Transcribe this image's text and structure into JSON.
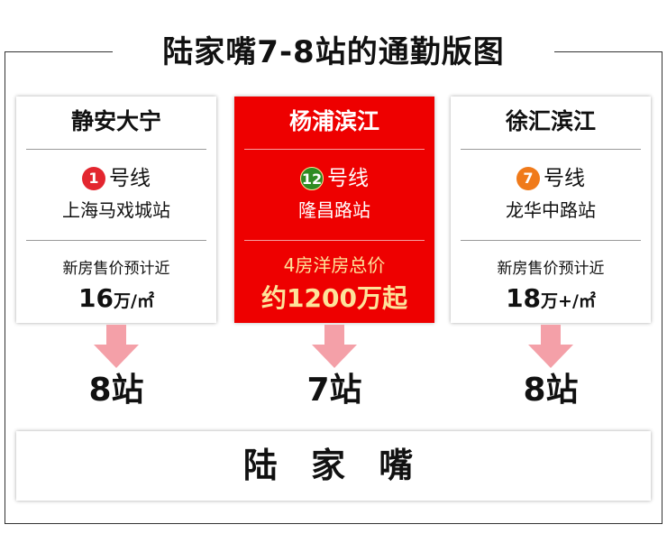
{
  "title": "陆家嘴7-8站的通勤版图",
  "destination": "陆 家 嘴",
  "cards": [
    {
      "area": "静安大宁",
      "line_number": "1",
      "line_suffix": "号线",
      "line_color": "#e3262f",
      "station": "上海马戏城站",
      "label": "新房售价预计近",
      "value_num": "16",
      "value_unit": "万/㎡",
      "stops": "8站"
    },
    {
      "area": "杨浦滨江",
      "line_number": "12",
      "line_suffix": "号线",
      "line_color": "#2e8b22",
      "station": "隆昌路站",
      "label": "4房洋房总价",
      "value_num": "约1200万起",
      "value_unit": "",
      "stops": "7站",
      "highlight": true,
      "highlight_color": "#ee0000"
    },
    {
      "area": "徐汇滨江",
      "line_number": "7",
      "line_suffix": "号线",
      "line_color": "#f07a1a",
      "station": "龙华中路站",
      "label": "新房售价预计近",
      "value_num": "18",
      "value_unit": "万+/㎡",
      "stops": "8站"
    }
  ],
  "arrow_color": "#f4a0a8"
}
